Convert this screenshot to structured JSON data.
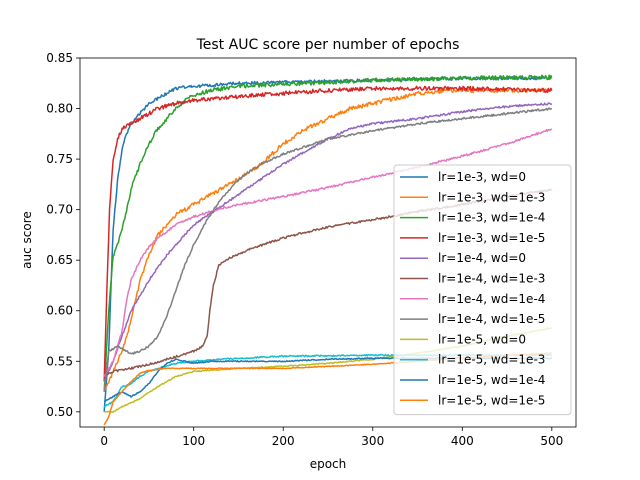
{
  "chart_data": {
    "type": "line",
    "title": "Test AUC score per number of epochs",
    "xlabel": "epoch",
    "ylabel": "auc score",
    "xlim": [
      -27,
      527
    ],
    "ylim": [
      0.485,
      0.85
    ],
    "xticks": [
      0,
      100,
      200,
      300,
      400,
      500
    ],
    "yticks": [
      0.5,
      0.55,
      0.6,
      0.65,
      0.7,
      0.75,
      0.8,
      0.85
    ],
    "xtick_labels": [
      "0",
      "100",
      "200",
      "300",
      "400",
      "500"
    ],
    "ytick_labels": [
      "0.50",
      "0.55",
      "0.60",
      "0.65",
      "0.70",
      "0.75",
      "0.80",
      "0.85"
    ],
    "legend_position": "center-right",
    "grid": false,
    "series": [
      {
        "name": "lr=1e-3, wd=0",
        "color": "#1f77b4",
        "noise": 0.0015,
        "points": [
          [
            0,
            0.5
          ],
          [
            5,
            0.56
          ],
          [
            10,
            0.68
          ],
          [
            15,
            0.73
          ],
          [
            20,
            0.76
          ],
          [
            25,
            0.775
          ],
          [
            30,
            0.785
          ],
          [
            40,
            0.795
          ],
          [
            50,
            0.805
          ],
          [
            60,
            0.81
          ],
          [
            70,
            0.815
          ],
          [
            80,
            0.82
          ],
          [
            100,
            0.822
          ],
          [
            150,
            0.825
          ],
          [
            200,
            0.826
          ],
          [
            300,
            0.828
          ],
          [
            400,
            0.83
          ],
          [
            500,
            0.83
          ]
        ]
      },
      {
        "name": "lr=1e-3, wd=1e-3",
        "color": "#ff7f0e",
        "noise": 0.002,
        "points": [
          [
            0,
            0.52
          ],
          [
            10,
            0.54
          ],
          [
            20,
            0.56
          ],
          [
            30,
            0.59
          ],
          [
            40,
            0.63
          ],
          [
            50,
            0.655
          ],
          [
            60,
            0.675
          ],
          [
            80,
            0.695
          ],
          [
            100,
            0.705
          ],
          [
            120,
            0.715
          ],
          [
            150,
            0.73
          ],
          [
            175,
            0.745
          ],
          [
            200,
            0.765
          ],
          [
            225,
            0.78
          ],
          [
            250,
            0.79
          ],
          [
            275,
            0.8
          ],
          [
            300,
            0.805
          ],
          [
            325,
            0.81
          ],
          [
            350,
            0.815
          ],
          [
            375,
            0.817
          ],
          [
            400,
            0.818
          ],
          [
            450,
            0.818
          ],
          [
            500,
            0.818
          ]
        ]
      },
      {
        "name": "lr=1e-3, wd=1e-4",
        "color": "#2ca02c",
        "noise": 0.002,
        "points": [
          [
            0,
            0.52
          ],
          [
            5,
            0.6
          ],
          [
            10,
            0.655
          ],
          [
            15,
            0.665
          ],
          [
            20,
            0.68
          ],
          [
            25,
            0.7
          ],
          [
            30,
            0.72
          ],
          [
            40,
            0.745
          ],
          [
            50,
            0.765
          ],
          [
            60,
            0.78
          ],
          [
            70,
            0.79
          ],
          [
            80,
            0.8
          ],
          [
            90,
            0.808
          ],
          [
            100,
            0.813
          ],
          [
            120,
            0.818
          ],
          [
            150,
            0.822
          ],
          [
            200,
            0.824
          ],
          [
            300,
            0.828
          ],
          [
            400,
            0.83
          ],
          [
            500,
            0.831
          ]
        ]
      },
      {
        "name": "lr=1e-3, wd=1e-5",
        "color": "#d62728",
        "noise": 0.002,
        "points": [
          [
            0,
            0.53
          ],
          [
            3,
            0.62
          ],
          [
            6,
            0.7
          ],
          [
            10,
            0.75
          ],
          [
            15,
            0.77
          ],
          [
            20,
            0.78
          ],
          [
            30,
            0.785
          ],
          [
            40,
            0.79
          ],
          [
            50,
            0.795
          ],
          [
            60,
            0.8
          ],
          [
            80,
            0.805
          ],
          [
            100,
            0.808
          ],
          [
            150,
            0.812
          ],
          [
            200,
            0.815
          ],
          [
            250,
            0.818
          ],
          [
            300,
            0.82
          ],
          [
            400,
            0.82
          ],
          [
            500,
            0.818
          ]
        ]
      },
      {
        "name": "lr=1e-4, wd=0",
        "color": "#9467bd",
        "noise": 0.001,
        "points": [
          [
            0,
            0.53
          ],
          [
            10,
            0.55
          ],
          [
            20,
            0.575
          ],
          [
            30,
            0.6
          ],
          [
            40,
            0.615
          ],
          [
            50,
            0.63
          ],
          [
            60,
            0.643
          ],
          [
            70,
            0.655
          ],
          [
            80,
            0.665
          ],
          [
            100,
            0.685
          ],
          [
            125,
            0.7
          ],
          [
            150,
            0.715
          ],
          [
            175,
            0.73
          ],
          [
            200,
            0.745
          ],
          [
            225,
            0.758
          ],
          [
            250,
            0.77
          ],
          [
            275,
            0.78
          ],
          [
            300,
            0.785
          ],
          [
            350,
            0.79
          ],
          [
            400,
            0.797
          ],
          [
            450,
            0.802
          ],
          [
            500,
            0.805
          ]
        ]
      },
      {
        "name": "lr=1e-4, wd=1e-3",
        "color": "#8c564b",
        "noise": 0.001,
        "points": [
          [
            0,
            0.535
          ],
          [
            10,
            0.54
          ],
          [
            30,
            0.543
          ],
          [
            50,
            0.547
          ],
          [
            70,
            0.552
          ],
          [
            90,
            0.557
          ],
          [
            100,
            0.56
          ],
          [
            110,
            0.565
          ],
          [
            115,
            0.575
          ],
          [
            118,
            0.6
          ],
          [
            122,
            0.625
          ],
          [
            128,
            0.645
          ],
          [
            140,
            0.652
          ],
          [
            160,
            0.66
          ],
          [
            200,
            0.672
          ],
          [
            250,
            0.683
          ],
          [
            300,
            0.69
          ],
          [
            350,
            0.698
          ],
          [
            400,
            0.705
          ],
          [
            450,
            0.713
          ],
          [
            500,
            0.72
          ]
        ]
      },
      {
        "name": "lr=1e-4, wd=1e-4",
        "color": "#e377c2",
        "noise": 0.001,
        "points": [
          [
            0,
            0.535
          ],
          [
            10,
            0.55
          ],
          [
            20,
            0.58
          ],
          [
            25,
            0.61
          ],
          [
            30,
            0.63
          ],
          [
            40,
            0.65
          ],
          [
            50,
            0.663
          ],
          [
            60,
            0.672
          ],
          [
            80,
            0.685
          ],
          [
            100,
            0.693
          ],
          [
            125,
            0.7
          ],
          [
            150,
            0.705
          ],
          [
            200,
            0.713
          ],
          [
            250,
            0.722
          ],
          [
            300,
            0.732
          ],
          [
            350,
            0.742
          ],
          [
            400,
            0.753
          ],
          [
            450,
            0.765
          ],
          [
            500,
            0.78
          ]
        ]
      },
      {
        "name": "lr=1e-4, wd=1e-5",
        "color": "#7f7f7f",
        "noise": 0.001,
        "points": [
          [
            0,
            0.52
          ],
          [
            5,
            0.56
          ],
          [
            15,
            0.565
          ],
          [
            30,
            0.557
          ],
          [
            40,
            0.56
          ],
          [
            50,
            0.565
          ],
          [
            60,
            0.575
          ],
          [
            70,
            0.595
          ],
          [
            80,
            0.62
          ],
          [
            90,
            0.645
          ],
          [
            100,
            0.665
          ],
          [
            115,
            0.69
          ],
          [
            130,
            0.71
          ],
          [
            150,
            0.73
          ],
          [
            175,
            0.745
          ],
          [
            200,
            0.755
          ],
          [
            250,
            0.77
          ],
          [
            300,
            0.778
          ],
          [
            350,
            0.785
          ],
          [
            400,
            0.79
          ],
          [
            450,
            0.795
          ],
          [
            500,
            0.8
          ]
        ]
      },
      {
        "name": "lr=1e-5, wd=0",
        "color": "#bcbd22",
        "noise": 0.0005,
        "points": [
          [
            0,
            0.5
          ],
          [
            10,
            0.5
          ],
          [
            20,
            0.505
          ],
          [
            40,
            0.513
          ],
          [
            60,
            0.525
          ],
          [
            80,
            0.535
          ],
          [
            100,
            0.54
          ],
          [
            150,
            0.543
          ],
          [
            200,
            0.545
          ],
          [
            250,
            0.548
          ],
          [
            300,
            0.552
          ],
          [
            350,
            0.558
          ],
          [
            400,
            0.565
          ],
          [
            450,
            0.575
          ],
          [
            500,
            0.583
          ]
        ]
      },
      {
        "name": "lr=1e-5, wd=1e-3",
        "color": "#17becf",
        "noise": 0.0007,
        "points": [
          [
            0,
            0.505
          ],
          [
            10,
            0.51
          ],
          [
            20,
            0.525
          ],
          [
            30,
            0.528
          ],
          [
            40,
            0.535
          ],
          [
            50,
            0.54
          ],
          [
            60,
            0.543
          ],
          [
            80,
            0.548
          ],
          [
            100,
            0.55
          ],
          [
            150,
            0.553
          ],
          [
            200,
            0.555
          ],
          [
            300,
            0.556
          ],
          [
            400,
            0.556
          ],
          [
            500,
            0.556
          ]
        ]
      },
      {
        "name": "lr=1e-5, wd=1e-4",
        "color": "#1f77b4",
        "noise": 0.0005,
        "points": [
          [
            0,
            0.51
          ],
          [
            10,
            0.515
          ],
          [
            20,
            0.52
          ],
          [
            30,
            0.515
          ],
          [
            40,
            0.52
          ],
          [
            50,
            0.528
          ],
          [
            60,
            0.54
          ],
          [
            70,
            0.548
          ],
          [
            80,
            0.552
          ],
          [
            90,
            0.55
          ],
          [
            100,
            0.548
          ],
          [
            120,
            0.55
          ],
          [
            150,
            0.55
          ],
          [
            200,
            0.55
          ],
          [
            250,
            0.552
          ],
          [
            300,
            0.553
          ],
          [
            400,
            0.553
          ],
          [
            500,
            0.553
          ]
        ]
      },
      {
        "name": "lr=1e-5, wd=1e-5",
        "color": "#ff7f0e",
        "noise": 0.0004,
        "points": [
          [
            0,
            0.487
          ],
          [
            5,
            0.495
          ],
          [
            10,
            0.51
          ],
          [
            20,
            0.52
          ],
          [
            30,
            0.53
          ],
          [
            40,
            0.538
          ],
          [
            50,
            0.541
          ],
          [
            70,
            0.543
          ],
          [
            100,
            0.543
          ],
          [
            150,
            0.543
          ],
          [
            200,
            0.543
          ],
          [
            250,
            0.545
          ],
          [
            300,
            0.547
          ],
          [
            350,
            0.55
          ],
          [
            400,
            0.553
          ],
          [
            450,
            0.556
          ],
          [
            500,
            0.558
          ]
        ]
      }
    ]
  }
}
